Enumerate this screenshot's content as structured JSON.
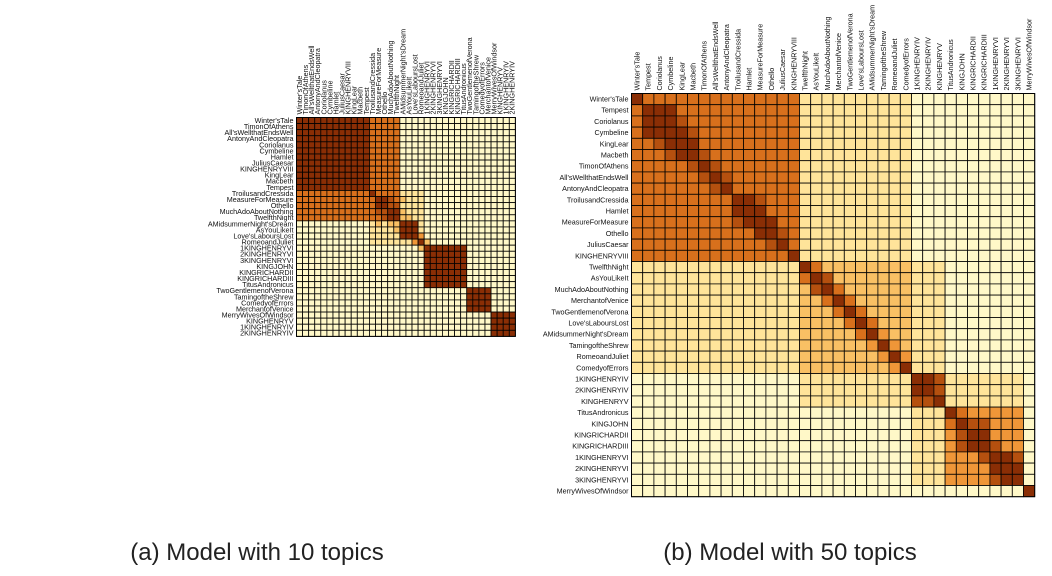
{
  "figure": {
    "captions": [
      "(a) Model with 10 topics",
      "(b) Model with 50 topics"
    ]
  },
  "colors": {
    "background": "#ffffff",
    "grid": "#000000",
    "scale": [
      "#fff8c8",
      "#ffe49a",
      "#f9c064",
      "#ef9638",
      "#d8701c",
      "#b5500f",
      "#8a2e05"
    ]
  },
  "chart_data": [
    {
      "type": "heatmap",
      "title": "(a) Model with 10 topics",
      "labels": [
        "Winter'sTale",
        "TimonOfAthens",
        "All'sWellthatEndsWell",
        "AntonyAndCleopatra",
        "Coriolanus",
        "Cymbeline",
        "Hamlet",
        "JuliusCaesar",
        "KINGHENRYVIII",
        "KingLear",
        "Macbeth",
        "Tempest",
        "TroilusandCressida",
        "MeasureForMeasure",
        "Othello",
        "MuchAdoAboutNothing",
        "TwelfthNight",
        "AMidsummerNight'sDream",
        "AsYouLikeIt",
        "Love'sLaboursLost",
        "RomeoandJuliet",
        "1KINGHENRYVI",
        "2KINGHENRYVI",
        "3KINGHENRYVI",
        "KINGJOHN",
        "KINGRICHARDII",
        "KINGRICHARDIII",
        "TitusAndronicus",
        "TwoGentlemenofVerona",
        "TamingoftheShrew",
        "ComedyofErrors",
        "MerchantofVenice",
        "MerryWivesOfWindsor",
        "KINGHENRYV",
        "1KINGHENRYIV",
        "2KINGHENRYIV"
      ],
      "levels": "0 (lightest) to 6 (darkest), similarity between plays",
      "blocks": [
        {
          "start": 0,
          "end": 11,
          "level": 6
        },
        {
          "start": 12,
          "end": 16,
          "level": 4
        },
        {
          "start": 17,
          "end": 20,
          "level": 1
        },
        {
          "start": 21,
          "end": 27,
          "level": 6
        },
        {
          "start": 28,
          "end": 31,
          "level": 6
        },
        {
          "start": 32,
          "end": 35,
          "level": 6
        }
      ],
      "cross_blocks": [
        {
          "a": [
            0,
            11
          ],
          "b": [
            12,
            16
          ],
          "level": 4
        },
        {
          "a": [
            12,
            16
          ],
          "b": [
            17,
            20
          ],
          "level": 1
        }
      ],
      "cells": [
        {
          "r": 13,
          "c": 14,
          "level": 6
        },
        {
          "r": 13,
          "c": 15,
          "level": 5
        },
        {
          "r": 14,
          "c": 15,
          "level": 5
        },
        {
          "r": 15,
          "c": 16,
          "level": 6
        },
        {
          "r": 14,
          "c": 16,
          "level": 5
        },
        {
          "r": 17,
          "c": 18,
          "level": 6
        },
        {
          "r": 17,
          "c": 19,
          "level": 6
        },
        {
          "r": 18,
          "c": 19,
          "level": 6
        },
        {
          "r": 15,
          "c": 17,
          "level": 2
        },
        {
          "r": 16,
          "c": 17,
          "level": 2
        },
        {
          "r": 16,
          "c": 18,
          "level": 2
        },
        {
          "r": 13,
          "c": 17,
          "level": 2
        },
        {
          "r": 19,
          "c": 20,
          "level": 3
        },
        {
          "r": 20,
          "c": 21,
          "level": 2
        }
      ]
    },
    {
      "type": "heatmap",
      "title": "(b) Model with 50 topics",
      "labels": [
        "Winter'sTale",
        "Tempest",
        "Coriolanus",
        "Cymbeline",
        "KingLear",
        "Macbeth",
        "TimonOfAthens",
        "All'sWellthatEndsWell",
        "AntonyAndCleopatra",
        "TroilusandCressida",
        "Hamlet",
        "MeasureForMeasure",
        "Othello",
        "JuliusCaesar",
        "KINGHENRYVIII",
        "TwelfthNight",
        "AsYouLikeIt",
        "MuchAdoAboutNothing",
        "MerchantofVenice",
        "TwoGentlemenofVerona",
        "Love'sLaboursLost",
        "AMidsummerNight'sDream",
        "TamingoftheShrew",
        "RomeoandJuliet",
        "ComedyofErrors",
        "1KINGHENRYIV",
        "2KINGHENRYIV",
        "KINGHENRYV",
        "TitusAndronicus",
        "KINGJOHN",
        "KINGRICHARDII",
        "KINGRICHARDIII",
        "1KINGHENRYVI",
        "2KINGHENRYVI",
        "3KINGHENRYVI",
        "MerryWivesOfWindsor"
      ],
      "levels": "0 (lightest) to 6 (darkest), similarity between plays",
      "blocks": [
        {
          "start": 0,
          "end": 14,
          "level": 4
        },
        {
          "start": 15,
          "end": 24,
          "level": 2
        },
        {
          "start": 25,
          "end": 27,
          "level": 4
        },
        {
          "start": 28,
          "end": 34,
          "level": 3
        }
      ],
      "cross_blocks": [
        {
          "a": [
            0,
            14
          ],
          "b": [
            15,
            24
          ],
          "level": 1
        },
        {
          "a": [
            15,
            24
          ],
          "b": [
            25,
            27
          ],
          "level": 1
        },
        {
          "a": [
            25,
            27
          ],
          "b": [
            28,
            34
          ],
          "level": 1
        }
      ],
      "cells": [
        {
          "r": 1,
          "c": 2,
          "level": 6
        },
        {
          "r": 1,
          "c": 3,
          "level": 6
        },
        {
          "r": 2,
          "c": 3,
          "level": 6
        },
        {
          "r": 2,
          "c": 4,
          "level": 5
        },
        {
          "r": 3,
          "c": 4,
          "level": 6
        },
        {
          "r": 4,
          "c": 5,
          "level": 6
        },
        {
          "r": 3,
          "c": 5,
          "level": 5
        },
        {
          "r": 5,
          "c": 6,
          "level": 5
        },
        {
          "r": 6,
          "c": 7,
          "level": 5
        },
        {
          "r": 7,
          "c": 8,
          "level": 5
        },
        {
          "r": 9,
          "c": 10,
          "level": 6
        },
        {
          "r": 10,
          "c": 11,
          "level": 6
        },
        {
          "r": 9,
          "c": 11,
          "level": 5
        },
        {
          "r": 11,
          "c": 12,
          "level": 6
        },
        {
          "r": 12,
          "c": 13,
          "level": 5
        },
        {
          "r": 13,
          "c": 14,
          "level": 4
        },
        {
          "r": 15,
          "c": 16,
          "level": 4
        },
        {
          "r": 16,
          "c": 17,
          "level": 5
        },
        {
          "r": 17,
          "c": 18,
          "level": 4
        },
        {
          "r": 18,
          "c": 19,
          "level": 4
        },
        {
          "r": 19,
          "c": 20,
          "level": 4
        },
        {
          "r": 20,
          "c": 21,
          "level": 4
        },
        {
          "r": 21,
          "c": 22,
          "level": 3
        },
        {
          "r": 22,
          "c": 23,
          "level": 3
        },
        {
          "r": 23,
          "c": 24,
          "level": 3
        },
        {
          "r": 25,
          "c": 26,
          "level": 6
        },
        {
          "r": 26,
          "c": 27,
          "level": 5
        },
        {
          "r": 25,
          "c": 27,
          "level": 5
        },
        {
          "r": 29,
          "c": 30,
          "level": 5
        },
        {
          "r": 30,
          "c": 31,
          "level": 6
        },
        {
          "r": 29,
          "c": 31,
          "level": 5
        },
        {
          "r": 31,
          "c": 32,
          "level": 5
        },
        {
          "r": 32,
          "c": 33,
          "level": 6
        },
        {
          "r": 33,
          "c": 34,
          "level": 6
        },
        {
          "r": 32,
          "c": 34,
          "level": 5
        },
        {
          "r": 28,
          "c": 29,
          "level": 4
        }
      ]
    }
  ]
}
